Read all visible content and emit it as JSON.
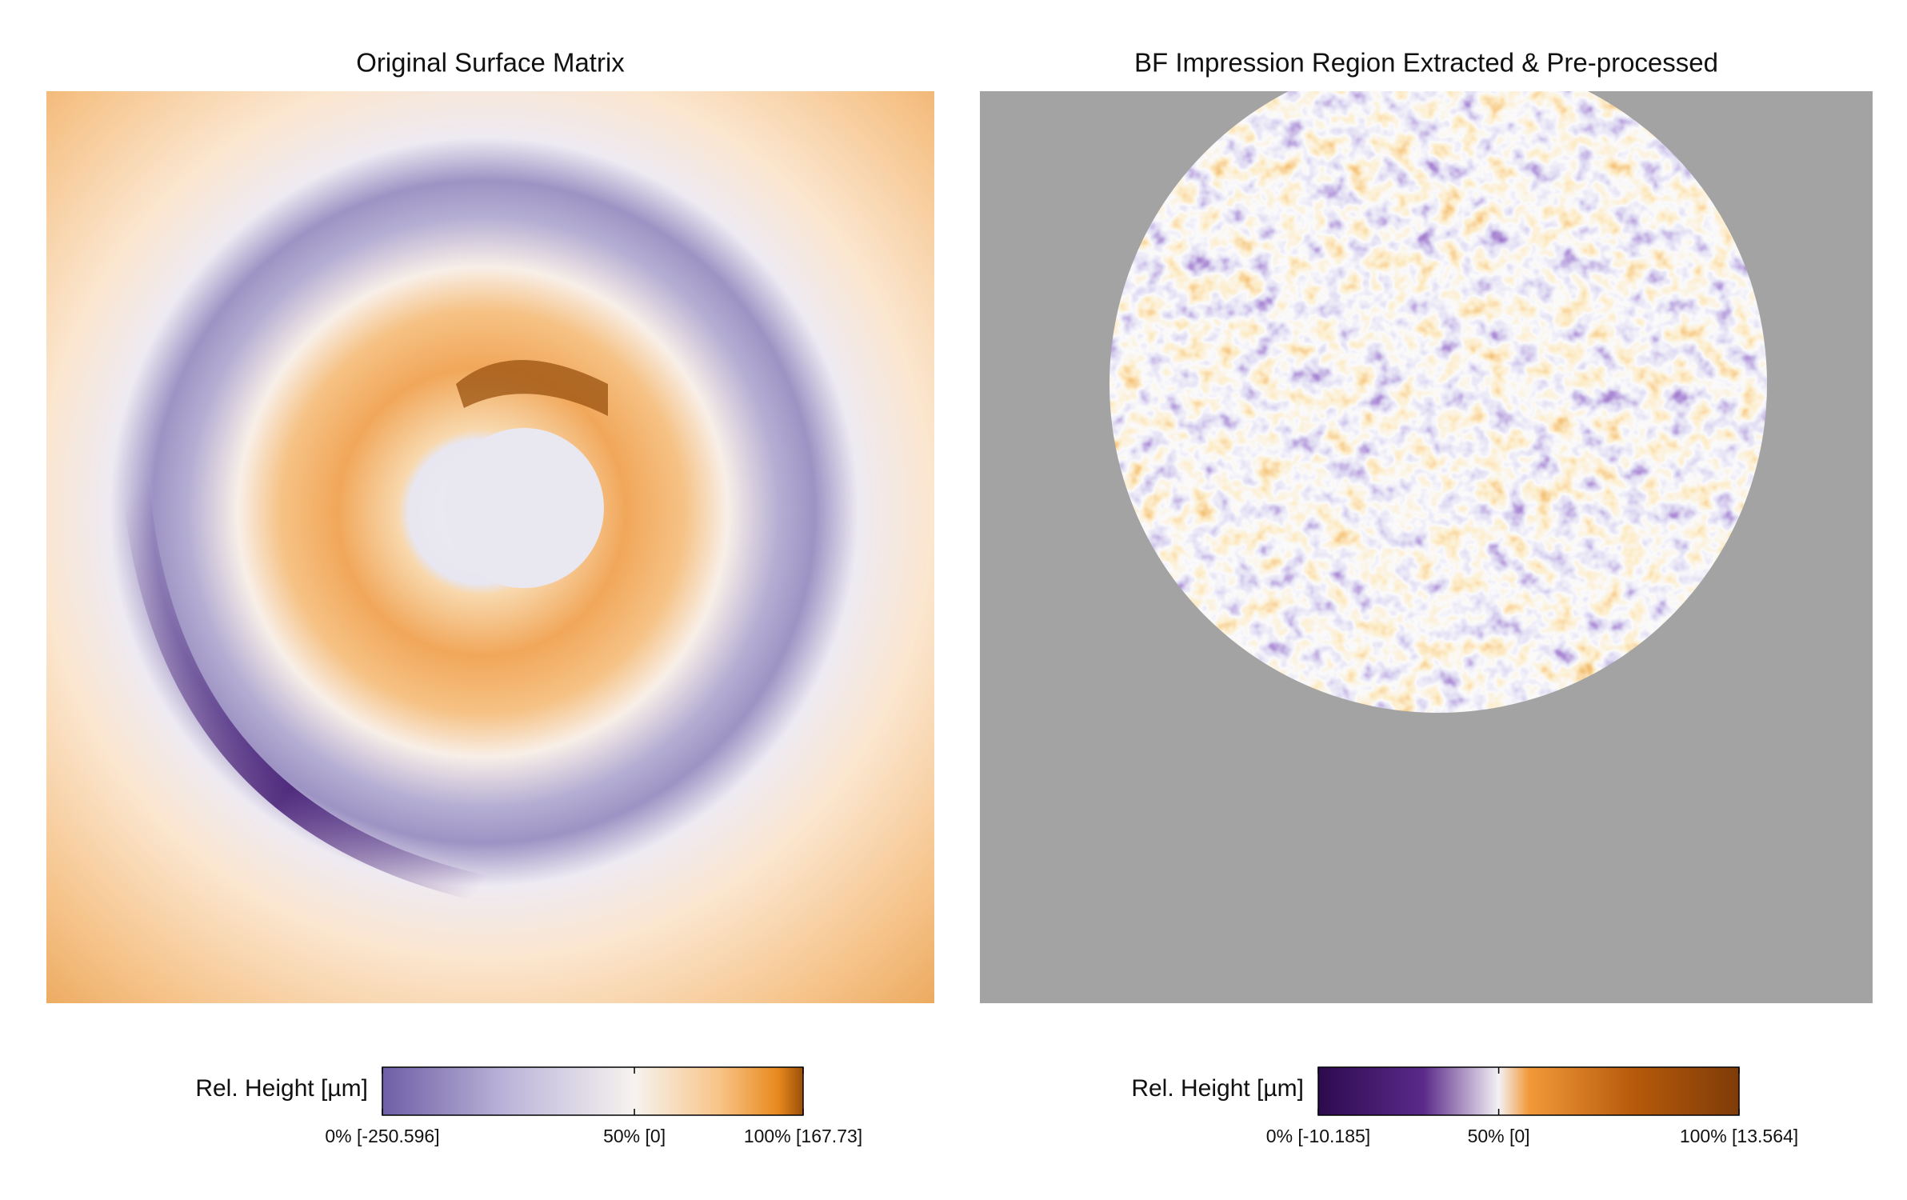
{
  "chart_data": [
    {
      "type": "heatmap",
      "title": "Original Surface Matrix",
      "colorbar_label": "Rel. Height [µm]",
      "clim": [
        -250.596,
        167.73
      ],
      "cticks": [
        {
          "value": -250.596,
          "label": "0% [-250.596]"
        },
        {
          "value": 0,
          "label": "50% [0]"
        },
        {
          "value": 167.73,
          "label": "100% [167.73]"
        }
      ]
    },
    {
      "type": "heatmap",
      "title": "BF Impression Region Extracted & Pre-processed",
      "colorbar_label": "Rel. Height [µm]",
      "clim": [
        -10.185,
        13.564
      ],
      "cticks": [
        {
          "value": -10.185,
          "label": "0% [-10.185]"
        },
        {
          "value": 0,
          "label": "50% [0]"
        },
        {
          "value": 13.564,
          "label": "100% [13.564]"
        }
      ]
    }
  ]
}
